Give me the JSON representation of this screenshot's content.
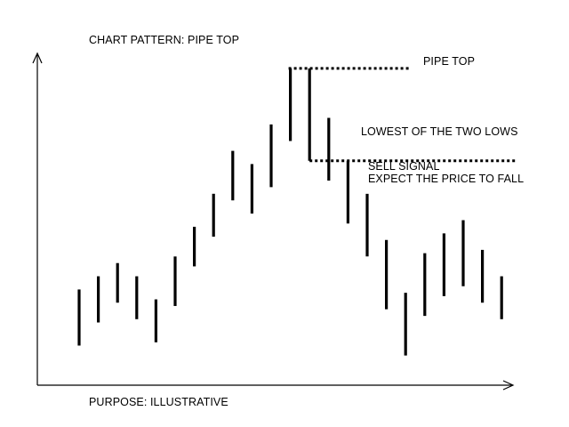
{
  "chart_data": {
    "type": "bar",
    "title": "CHART PATTERN: PIPE TOP",
    "footer": "PURPOSE: ILLUSTRATIVE",
    "xlabel": "",
    "ylabel": "",
    "ylim": [
      0,
      100
    ],
    "grid": false,
    "note": "price bars with high/low ranges in relative price units",
    "bars": [
      {
        "high": 29,
        "low": 12
      },
      {
        "high": 33,
        "low": 19
      },
      {
        "high": 37,
        "low": 25
      },
      {
        "high": 33,
        "low": 20
      },
      {
        "high": 26,
        "low": 13
      },
      {
        "high": 39,
        "low": 24
      },
      {
        "high": 48,
        "low": 36
      },
      {
        "high": 58,
        "low": 45
      },
      {
        "high": 71,
        "low": 56
      },
      {
        "high": 67,
        "low": 52
      },
      {
        "high": 79,
        "low": 60
      },
      {
        "high": 96,
        "low": 74
      },
      {
        "high": 96,
        "low": 68
      },
      {
        "high": 81,
        "low": 62
      },
      {
        "high": 68,
        "low": 49
      },
      {
        "high": 58,
        "low": 39
      },
      {
        "high": 44,
        "low": 23
      },
      {
        "high": 28,
        "low": 9
      },
      {
        "high": 40,
        "low": 21
      },
      {
        "high": 46,
        "low": 27
      },
      {
        "high": 50,
        "low": 30
      },
      {
        "high": 41,
        "low": 25
      },
      {
        "high": 33,
        "low": 20
      }
    ],
    "annotations": [
      {
        "text": "PIPE TOP",
        "level": 96
      },
      {
        "text": "LOWEST OF THE TWO LOWS",
        "level": 68
      },
      {
        "text_line1": "SELL SIGNAL",
        "text_line2": "EXPECT THE PRICE TO FALL"
      }
    ]
  }
}
